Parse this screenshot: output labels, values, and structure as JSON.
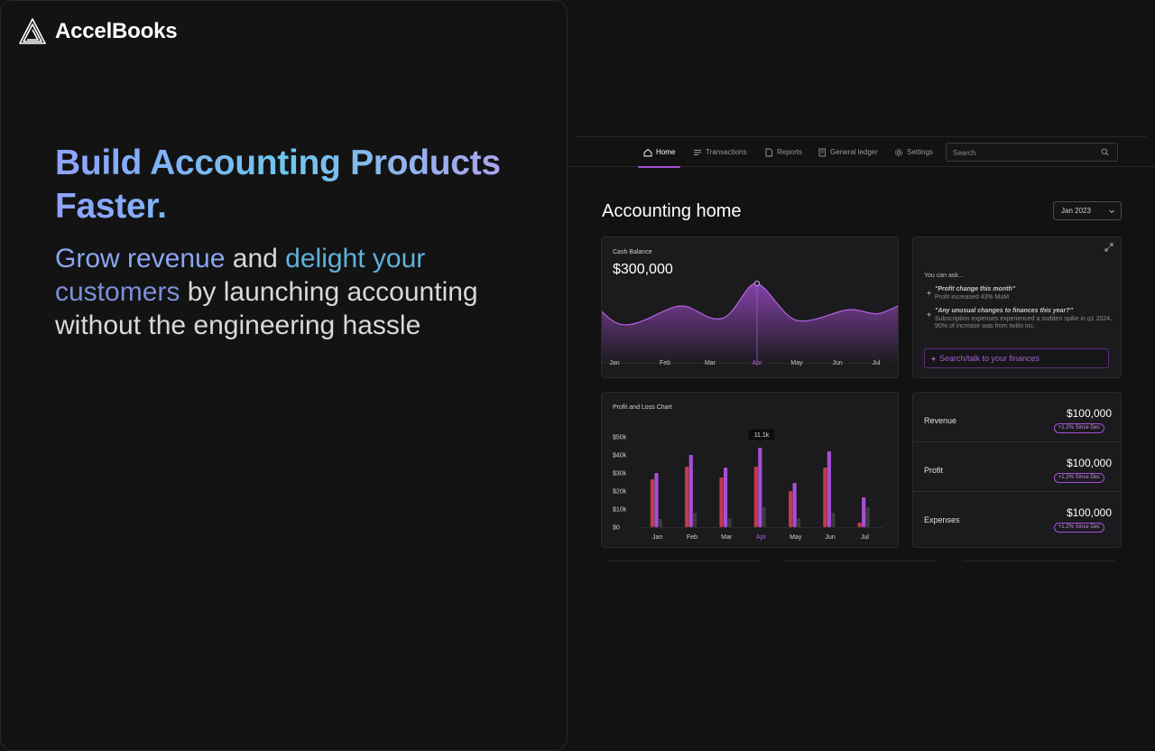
{
  "brand": {
    "name": "AccelBooks"
  },
  "hero": {
    "title": "Build Accounting Products Faster.",
    "sub_hl1": "Grow revenue",
    "sub_t1": " and ",
    "sub_hl2": "delight your",
    "sub_t2": " ",
    "sub_hl3": "customers",
    "sub_t3": " by launching accounting without the engineering hassle"
  },
  "nav": {
    "items": [
      {
        "label": "Home",
        "icon": "home-icon",
        "active": true
      },
      {
        "label": "Transactions",
        "icon": "list-icon",
        "active": false
      },
      {
        "label": "Reports",
        "icon": "document-icon",
        "active": false
      },
      {
        "label": "General ledger",
        "icon": "ledger-icon",
        "active": false
      },
      {
        "label": "Settings",
        "icon": "gear-icon",
        "active": false
      }
    ],
    "search_placeholder": "Search"
  },
  "page": {
    "title": "Accounting home",
    "period": "Jan 2023"
  },
  "cash_card": {
    "label": "Cash Balance",
    "value": "$300,000",
    "months": [
      "Jan",
      "Feb",
      "Mar",
      "Apr",
      "May",
      "Jun",
      "Jul"
    ],
    "highlight_month": "Apr"
  },
  "ask_card": {
    "intro": "You can ask...",
    "questions": [
      {
        "q": "\"Profit change this month\"",
        "a": "Profit increased 43% MoM"
      },
      {
        "q": "\"Any unusual changes to finances this year?\"",
        "a": "Subscription expenses experienced a sudden spike in q1 2024. 90% of increase was from twilio inc."
      }
    ],
    "input_placeholder": "Search/talk to your finances"
  },
  "pnl_card": {
    "label": "Profit and Loss Chart",
    "tooltip": "11.1k"
  },
  "metrics": [
    {
      "name": "Revenue",
      "value": "$100,000",
      "badge": "+1.2% Since Dec"
    },
    {
      "name": "Profit",
      "value": "$100,000",
      "badge": "+1.2% Since Dec"
    },
    {
      "name": "Expenses",
      "value": "$100,000",
      "badge": "+1.2% Since Dec"
    }
  ],
  "colors": {
    "accent": "#a64fd4",
    "bar_red": "#c43a4a",
    "bar_purple": "#a64fd4",
    "bar_gray": "#3a3a3e",
    "bg": "#121212"
  },
  "chart_data": {
    "type": "bar",
    "title": "Profit and Loss Chart",
    "categories": [
      "Jan",
      "Feb",
      "Mar",
      "Apr",
      "May",
      "Jun",
      "Jul"
    ],
    "ylim": [
      0,
      50000
    ],
    "yticks": [
      "$0",
      "$10k",
      "$20k",
      "$30k",
      "$40k",
      "$50k"
    ],
    "highlight_category": "Apr",
    "series": [
      {
        "color": "#c43a4a",
        "values": [
          26500,
          33500,
          27500,
          33500,
          20000,
          33000,
          2500
        ]
      },
      {
        "color": "#a64fd4",
        "values": [
          30000,
          40000,
          33000,
          44000,
          24500,
          42000,
          16500
        ]
      },
      {
        "color": "#3a3a3e",
        "values": [
          4500,
          8000,
          5000,
          11100,
          5000,
          8000,
          11000
        ]
      }
    ]
  }
}
